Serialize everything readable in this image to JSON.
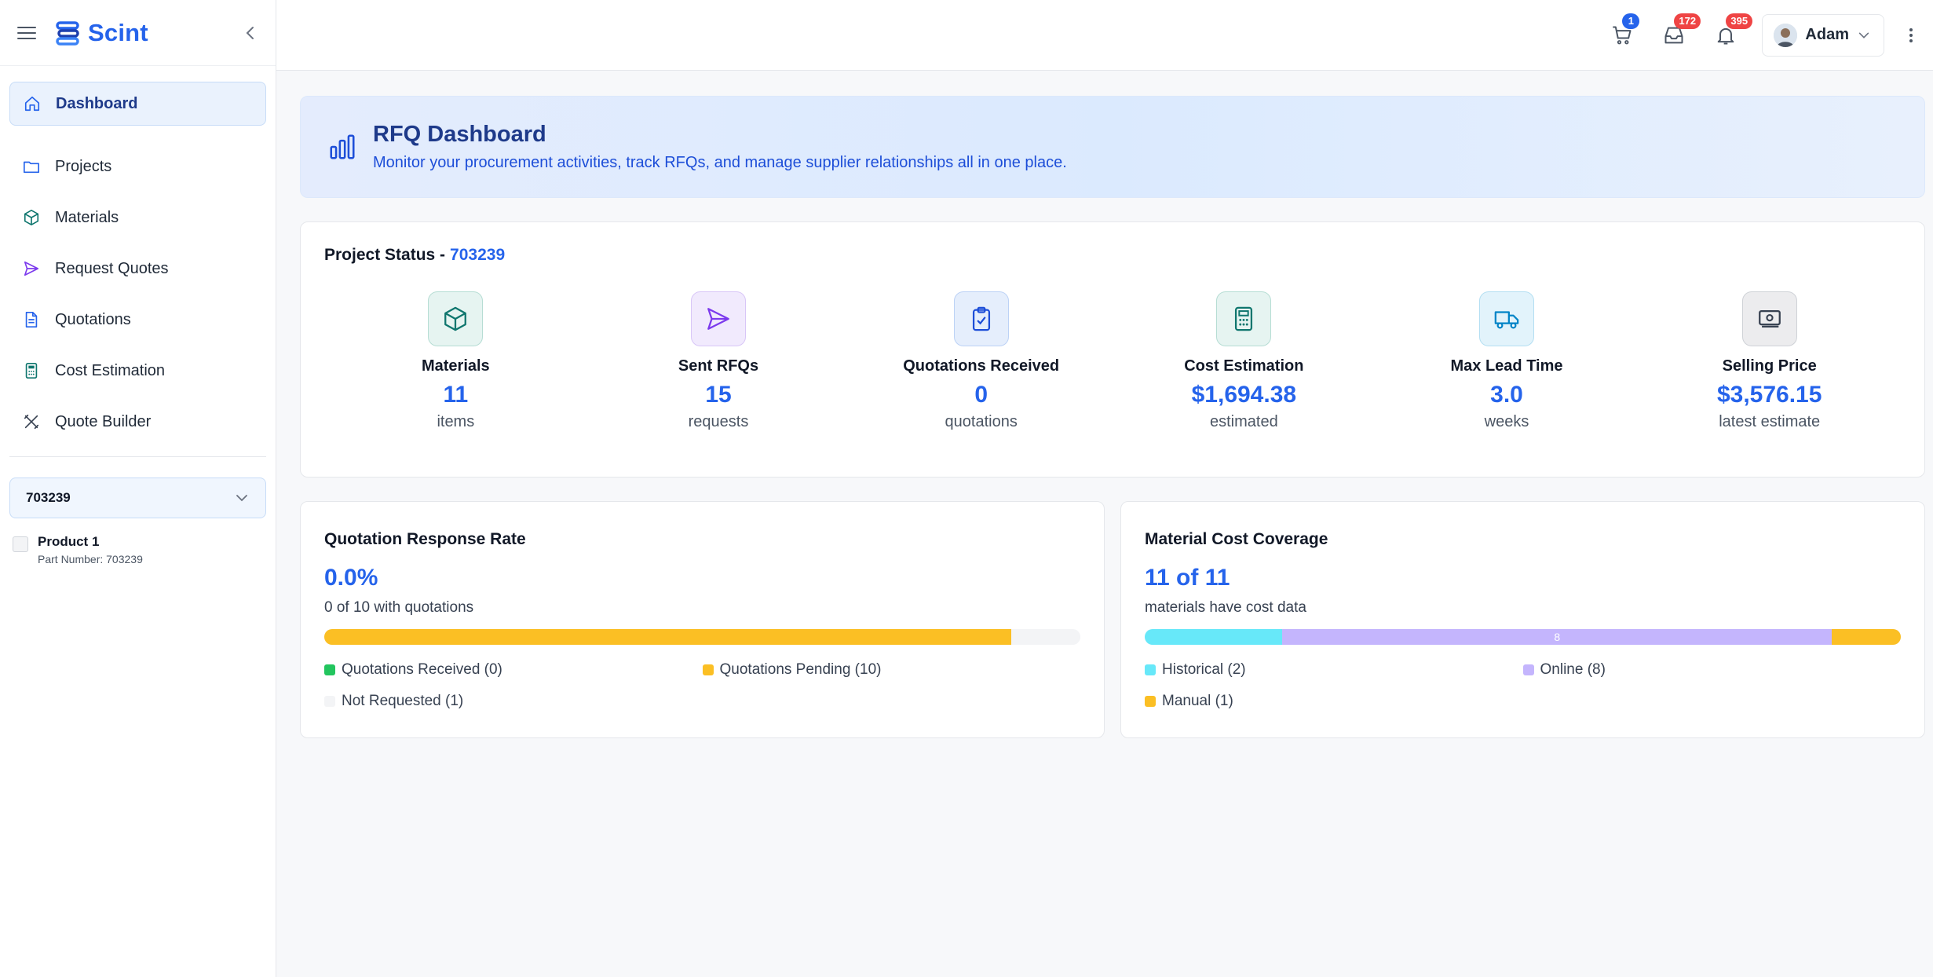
{
  "app": {
    "name": "Scint"
  },
  "sidebar": {
    "items": [
      {
        "label": "Dashboard"
      },
      {
        "label": "Projects"
      },
      {
        "label": "Materials"
      },
      {
        "label": "Request Quotes"
      },
      {
        "label": "Quotations"
      },
      {
        "label": "Cost Estimation"
      },
      {
        "label": "Quote Builder"
      }
    ],
    "project_select": "703239",
    "product": {
      "name": "Product 1",
      "part_number": "Part Number: 703239"
    }
  },
  "topbar": {
    "cart_count": "1",
    "inbox_count": "172",
    "notifications_count": "395",
    "user_name": "Adam"
  },
  "hero": {
    "title": "RFQ Dashboard",
    "subtitle": "Monitor your procurement activities, track RFQs, and manage supplier relationships all in one place."
  },
  "status": {
    "title": "Project Status -",
    "project_id": "703239",
    "stats": [
      {
        "label": "Materials",
        "value": "11",
        "unit": "items",
        "icon": "cube-icon",
        "color": "#0f766e"
      },
      {
        "label": "Sent RFQs",
        "value": "15",
        "unit": "requests",
        "icon": "send-icon",
        "color": "#7c3aed"
      },
      {
        "label": "Quotations Received",
        "value": "0",
        "unit": "quotations",
        "icon": "clipboard-check-icon",
        "color": "#1d4ed8"
      },
      {
        "label": "Cost Estimation",
        "value": "$1,694.38",
        "unit": "estimated",
        "icon": "calculator-icon",
        "color": "#0f766e"
      },
      {
        "label": "Max Lead Time",
        "value": "3.0",
        "unit": "weeks",
        "icon": "truck-icon",
        "color": "#0284c7"
      },
      {
        "label": "Selling Price",
        "value": "$3,576.15",
        "unit": "latest estimate",
        "icon": "banknote-icon",
        "color": "#374151"
      }
    ]
  },
  "response_rate": {
    "title": "Quotation Response Rate",
    "percent": "0.0%",
    "subtitle": "0 of 10 with quotations",
    "segments": [
      {
        "label": "Quotations Received (0)",
        "fraction": 0,
        "color": "#22c55e"
      },
      {
        "label": "Quotations Pending (10)",
        "fraction": 0.909,
        "color": "#fbbf24"
      },
      {
        "label": "Not Requested (1)",
        "fraction": 0.091,
        "color": "#f3f4f6"
      }
    ]
  },
  "cost_coverage": {
    "title": "Material Cost Coverage",
    "headline": "11 of 11",
    "subtitle": "materials have cost data",
    "segments": [
      {
        "label": "Historical (2)",
        "fraction": 0.182,
        "color": "#67e8f9",
        "bar_text": ""
      },
      {
        "label": "Online (8)",
        "fraction": 0.727,
        "color": "#c4b5fd",
        "bar_text": "8"
      },
      {
        "label": "Manual (1)",
        "fraction": 0.091,
        "color": "#fbbf24",
        "bar_text": ""
      }
    ]
  }
}
